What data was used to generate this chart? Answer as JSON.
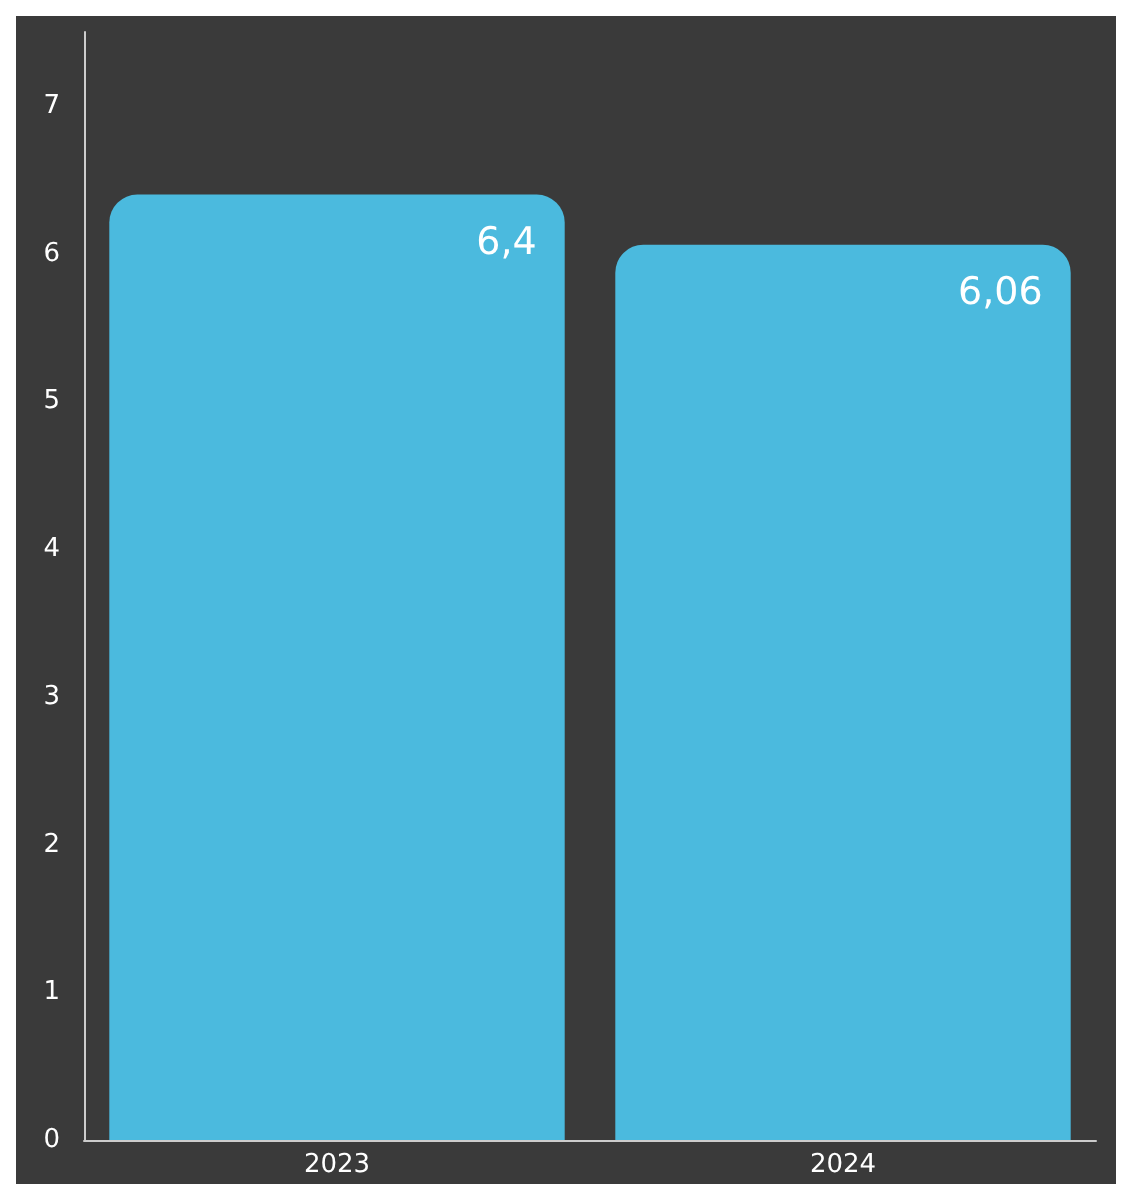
{
  "chart_data": {
    "type": "bar",
    "categories": [
      "2023",
      "2024"
    ],
    "values": [
      6.4,
      6.06
    ],
    "value_labels": [
      "6,4",
      "6,06"
    ],
    "color": "#4bbade",
    "ylim": [
      0,
      7.5
    ],
    "yticks": [
      0,
      1,
      2,
      3,
      4,
      5,
      6,
      7
    ],
    "grid": false
  }
}
